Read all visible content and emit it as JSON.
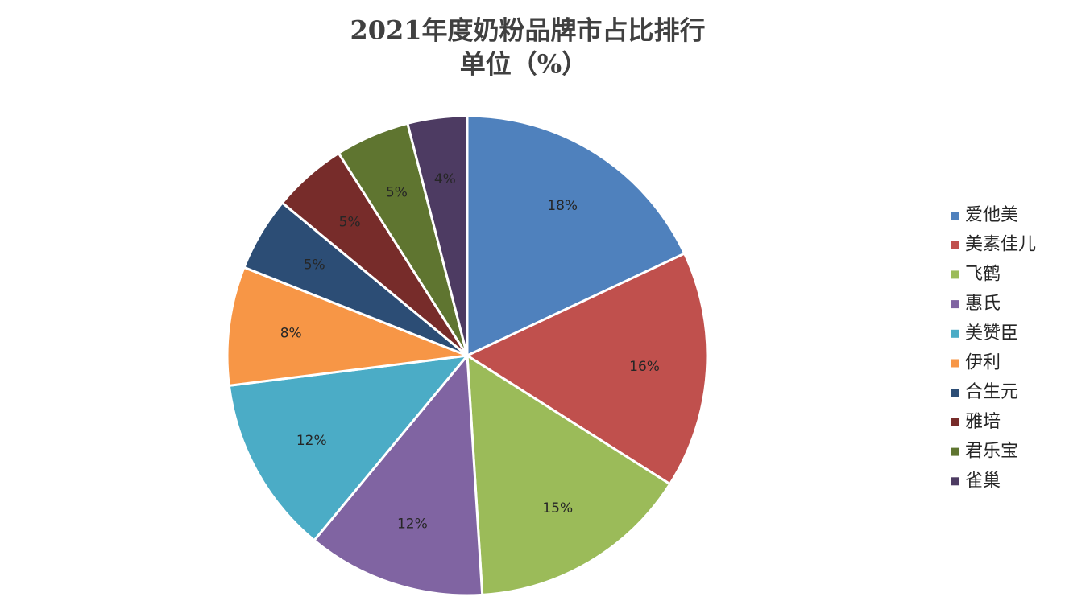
{
  "chart_data": {
    "type": "pie",
    "title": "2021年度奶粉品牌市占比排行",
    "subtitle": "单位（%）",
    "categories": [
      "爱他美",
      "美素佳儿",
      "飞鹤",
      "惠氏",
      "美赞臣",
      "伊利",
      "合生元",
      "雅培",
      "君乐宝",
      "雀巢"
    ],
    "values": [
      18,
      16,
      15,
      12,
      12,
      8,
      5,
      5,
      5,
      4
    ],
    "value_labels": [
      "18%",
      "16%",
      "15%",
      "12%",
      "12%",
      "8%",
      "5%",
      "5%",
      "5%",
      "4%"
    ],
    "colors": [
      "#4f81bd",
      "#c0504d",
      "#9bbb59",
      "#8064a2",
      "#4bacc6",
      "#f79646",
      "#2c4d75",
      "#772c2a",
      "#5f7530",
      "#4d3b62"
    ],
    "legend": "right"
  }
}
